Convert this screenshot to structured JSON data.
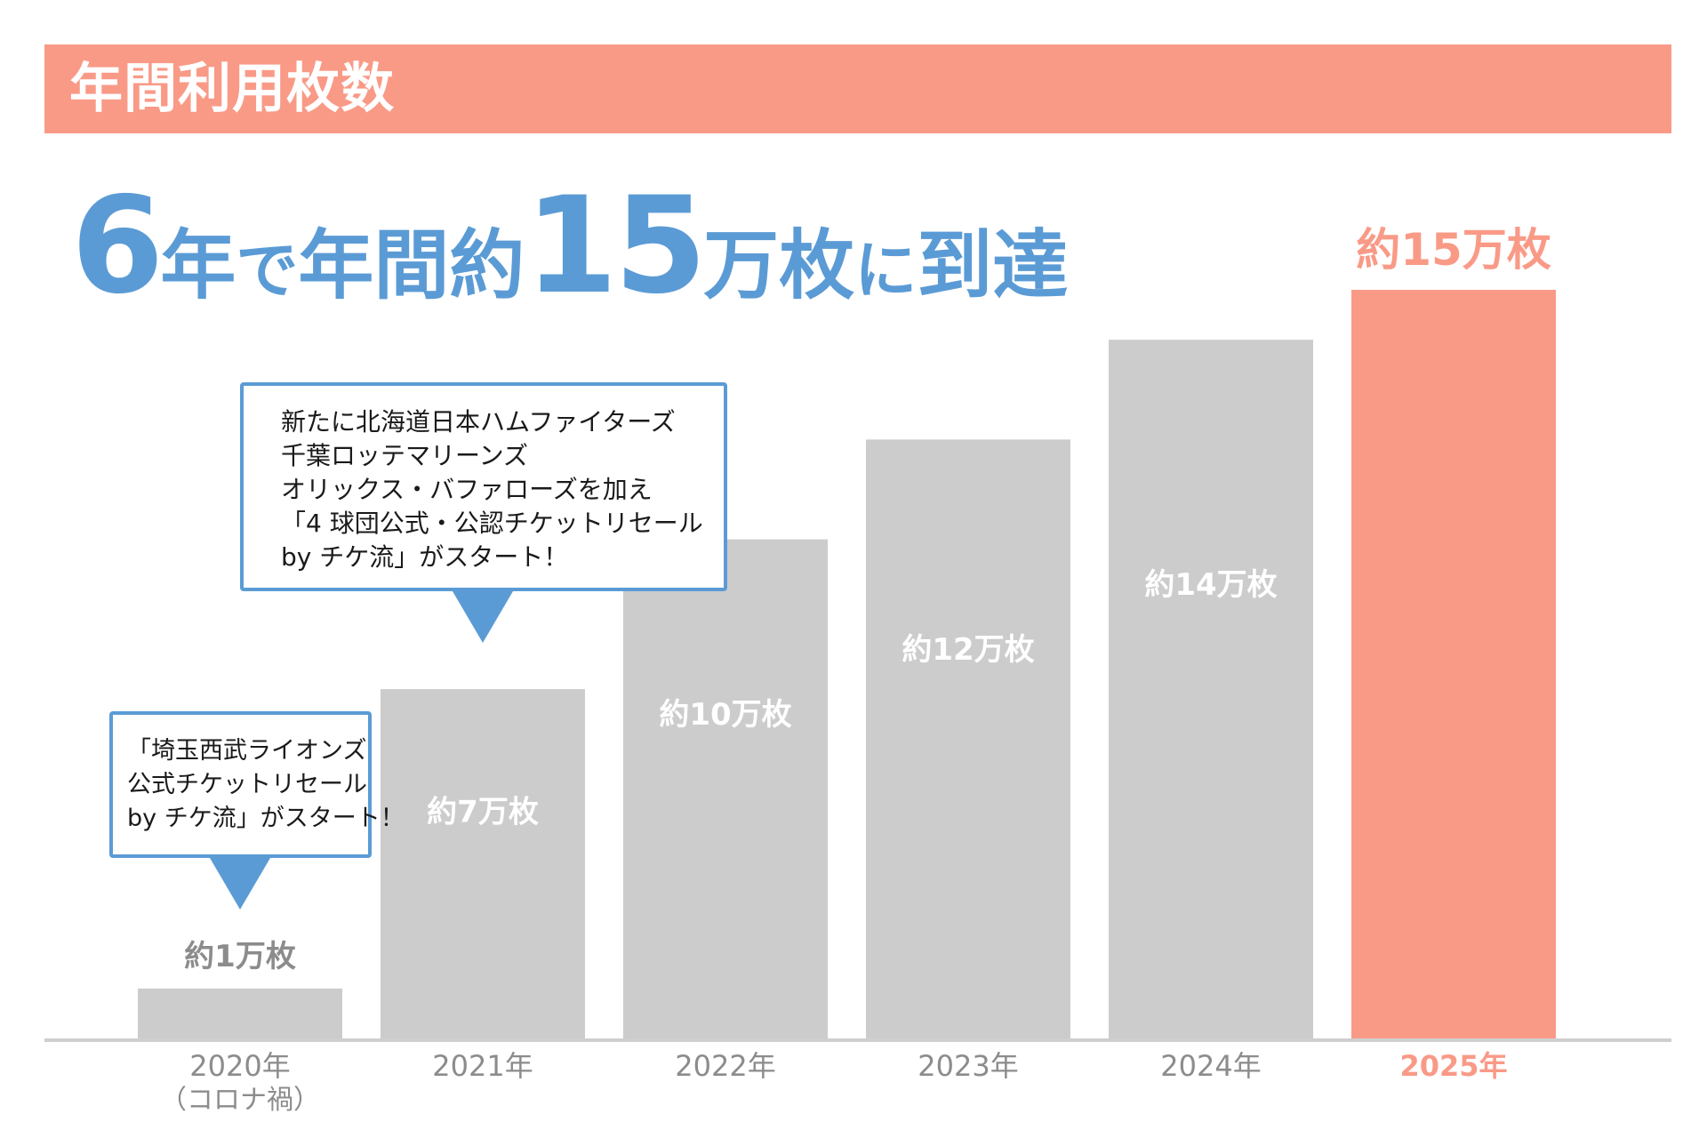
{
  "header": {
    "title": "年間利用枚数"
  },
  "headline": {
    "part1": "6",
    "part2": "年",
    "part3": "で",
    "part4": "年間",
    "part5": "約",
    "part6": "15",
    "part7": "万枚",
    "part8": "に",
    "part9": "到達"
  },
  "callouts": [
    {
      "lines": [
        "新たに北海道日本ハムファイターズ",
        "千葉ロッテマリーンズ",
        "オリックス・バファローズを加え",
        "「4 球団公式・公認チケットリセール",
        "by チケ流」がスタート！"
      ]
    },
    {
      "lines": [
        "「埼玉西武ライオンズ",
        "公式チケットリセール",
        "by チケ流」がスタート！"
      ]
    }
  ],
  "colors": {
    "accent": "#f99a87",
    "brand_blue": "#5b9bd5",
    "bar_gray": "#cccccc",
    "label_gray": "#8c8c8c",
    "axis": "#cfcfcf"
  },
  "chart_data": {
    "type": "bar",
    "title": "年間利用枚数",
    "categories": [
      "2020年",
      "2021年",
      "2022年",
      "2023年",
      "2024年",
      "2025年"
    ],
    "category_note": {
      "index": 0,
      "text": "（コロナ禍）"
    },
    "values": [
      1,
      7,
      10,
      12,
      14,
      15
    ],
    "unit": "万枚",
    "data_labels": [
      "約1万枚",
      "約7万枚",
      "約10万枚",
      "約12万枚",
      "約14万枚",
      "約15万枚"
    ],
    "highlight_index": 5,
    "ylim": [
      0,
      15
    ],
    "grid": false,
    "xlabel": "",
    "ylabel": ""
  }
}
